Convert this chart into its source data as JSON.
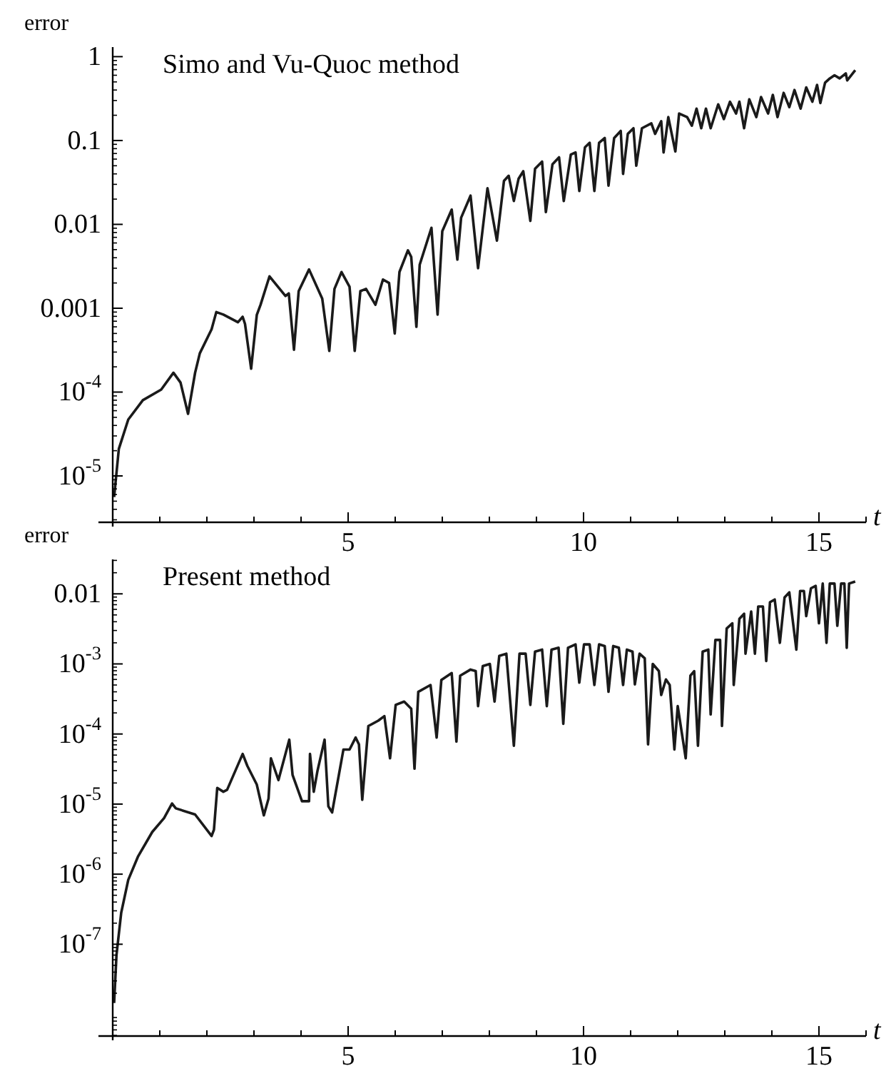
{
  "chart_data": [
    {
      "type": "line",
      "title": "Simo and Vu-Quoc method",
      "xlabel": "t",
      "ylabel": "error",
      "log": "y",
      "xlim": [
        0,
        16
      ],
      "ylim": [
        2.8e-06,
        1.3
      ],
      "xticks": [
        {
          "value": 0,
          "label": null
        },
        {
          "value": 1,
          "label": null
        },
        {
          "value": 2,
          "label": null
        },
        {
          "value": 3,
          "label": null
        },
        {
          "value": 4,
          "label": null
        },
        5,
        {
          "value": 6,
          "label": null
        },
        {
          "value": 7,
          "label": null
        },
        {
          "value": 8,
          "label": null
        },
        {
          "value": 9,
          "label": null
        },
        10,
        {
          "value": 11,
          "label": null
        },
        {
          "value": 12,
          "label": null
        },
        {
          "value": 13,
          "label": null
        },
        {
          "value": 14,
          "label": null
        },
        15,
        {
          "value": 16,
          "label": null
        }
      ],
      "yticks": [
        {
          "value": 1e-05,
          "label": "10$^{-5}$"
        },
        {
          "value": 0.0001,
          "label": "10$^{-4}$"
        },
        0.001,
        0.01,
        0.1,
        1
      ],
      "series": [
        {
          "color": "#1a1a1a",
          "x": [
            0.03,
            0.13,
            0.33,
            0.64,
            1.03,
            1.29,
            1.44,
            1.6,
            1.75,
            1.85,
            2.1,
            2.2,
            2.35,
            2.66,
            2.76,
            2.81,
            2.94,
            3.06,
            3.14,
            3.33,
            3.67,
            3.74,
            3.85,
            3.95,
            4.17,
            4.45,
            4.6,
            4.71,
            4.86,
            5.03,
            5.14,
            5.26,
            5.38,
            5.58,
            5.74,
            5.87,
            5.99,
            6.09,
            6.27,
            6.34,
            6.45,
            6.52,
            6.77,
            6.9,
            7.0,
            7.2,
            7.32,
            7.4,
            7.6,
            7.76,
            7.96,
            8.16,
            8.31,
            8.41,
            8.52,
            8.62,
            8.72,
            8.87,
            8.97,
            9.12,
            9.2,
            9.34,
            9.48,
            9.58,
            9.73,
            9.83,
            9.91,
            10.03,
            10.13,
            10.23,
            10.33,
            10.45,
            10.53,
            10.65,
            10.79,
            10.84,
            10.94,
            11.06,
            11.12,
            11.24,
            11.44,
            11.52,
            11.65,
            11.7,
            11.8,
            11.95,
            12.03,
            12.2,
            12.3,
            12.4,
            12.5,
            12.6,
            12.7,
            12.86,
            12.98,
            13.11,
            13.24,
            13.31,
            13.41,
            13.52,
            13.67,
            13.77,
            13.92,
            14.02,
            14.12,
            14.25,
            14.37,
            14.48,
            14.61,
            14.73,
            14.86,
            14.96,
            15.03,
            15.13,
            15.23,
            15.33,
            15.44,
            15.57,
            15.6,
            15.77
          ],
          "values": [
            5.6e-06,
            2.1e-05,
            4.7e-05,
            8e-05,
            0.000107,
            0.00017,
            0.00013,
            5.5e-05,
            0.00017,
            0.00029,
            0.00056,
            0.0009,
            0.00084,
            0.00068,
            0.00079,
            0.00065,
            0.00019,
            0.00083,
            0.0011,
            0.0024,
            0.0014,
            0.0015,
            0.00032,
            0.0016,
            0.0029,
            0.0013,
            0.00031,
            0.0017,
            0.0027,
            0.0018,
            0.00031,
            0.0016,
            0.0017,
            0.0011,
            0.0022,
            0.002,
            0.0005,
            0.0027,
            0.0049,
            0.0041,
            0.0006,
            0.0033,
            0.0091,
            0.00084,
            0.0083,
            0.015,
            0.0038,
            0.012,
            0.022,
            0.003,
            0.027,
            0.0064,
            0.033,
            0.038,
            0.019,
            0.035,
            0.043,
            0.011,
            0.046,
            0.056,
            0.014,
            0.052,
            0.063,
            0.019,
            0.068,
            0.072,
            0.025,
            0.083,
            0.094,
            0.025,
            0.094,
            0.107,
            0.029,
            0.107,
            0.13,
            0.04,
            0.12,
            0.14,
            0.05,
            0.14,
            0.16,
            0.12,
            0.17,
            0.072,
            0.19,
            0.074,
            0.21,
            0.19,
            0.15,
            0.24,
            0.14,
            0.24,
            0.14,
            0.27,
            0.18,
            0.29,
            0.21,
            0.29,
            0.14,
            0.31,
            0.19,
            0.33,
            0.21,
            0.35,
            0.19,
            0.37,
            0.25,
            0.4,
            0.24,
            0.43,
            0.29,
            0.46,
            0.28,
            0.49,
            0.55,
            0.6,
            0.55,
            0.63,
            0.52,
            0.69
          ]
        }
      ]
    },
    {
      "type": "line",
      "title": "Present method",
      "xlabel": "t",
      "ylabel": "error",
      "log": "y",
      "xlim": [
        0,
        16
      ],
      "ylim": [
        4.9e-09,
        0.031
      ],
      "xticks": [
        {
          "value": 0,
          "label": null
        },
        {
          "value": 1,
          "label": null
        },
        {
          "value": 2,
          "label": null
        },
        {
          "value": 3,
          "label": null
        },
        {
          "value": 4,
          "label": null
        },
        5,
        {
          "value": 6,
          "label": null
        },
        {
          "value": 7,
          "label": null
        },
        {
          "value": 8,
          "label": null
        },
        {
          "value": 9,
          "label": null
        },
        10,
        {
          "value": 11,
          "label": null
        },
        {
          "value": 12,
          "label": null
        },
        {
          "value": 13,
          "label": null
        },
        {
          "value": 14,
          "label": null
        },
        15,
        {
          "value": 16,
          "label": null
        }
      ],
      "yticks": [
        {
          "value": 1e-07,
          "label": "10$^{-7}$"
        },
        {
          "value": 1e-06,
          "label": "10$^{-6}$"
        },
        {
          "value": 1e-05,
          "label": "10$^{-5}$"
        },
        {
          "value": 0.0001,
          "label": "10$^{-4}$"
        },
        {
          "value": 0.001,
          "label": "10$^{-3}$"
        },
        0.01
      ],
      "series": [
        {
          "color": "#1a1a1a",
          "x": [
            0.03,
            0.08,
            0.18,
            0.33,
            0.54,
            0.84,
            1.09,
            1.26,
            1.34,
            1.75,
            2.1,
            2.15,
            2.22,
            2.35,
            2.43,
            2.76,
            2.86,
            3.06,
            3.21,
            3.31,
            3.36,
            3.52,
            3.75,
            3.82,
            4.02,
            4.17,
            4.19,
            4.27,
            4.35,
            4.5,
            4.58,
            4.66,
            4.9,
            5.03,
            5.16,
            5.23,
            5.3,
            5.43,
            5.64,
            5.77,
            5.89,
            6.01,
            6.19,
            6.34,
            6.41,
            6.49,
            6.75,
            6.88,
            6.98,
            7.2,
            7.3,
            7.38,
            7.6,
            7.71,
            7.76,
            7.86,
            8.01,
            8.11,
            8.21,
            8.36,
            8.52,
            8.64,
            8.77,
            8.87,
            8.97,
            9.12,
            9.22,
            9.32,
            9.47,
            9.57,
            9.67,
            9.83,
            9.91,
            10.01,
            10.13,
            10.23,
            10.33,
            10.45,
            10.53,
            10.63,
            10.75,
            10.84,
            10.92,
            11.04,
            11.09,
            11.19,
            11.3,
            11.37,
            11.47,
            11.6,
            11.65,
            11.75,
            11.83,
            11.93,
            12.0,
            12.17,
            12.27,
            12.35,
            12.43,
            12.53,
            12.65,
            12.7,
            12.8,
            12.9,
            12.94,
            13.04,
            13.16,
            13.19,
            13.31,
            13.41,
            13.44,
            13.56,
            13.64,
            13.71,
            13.81,
            13.88,
            13.96,
            14.06,
            14.17,
            14.27,
            14.37,
            14.52,
            14.6,
            14.68,
            14.73,
            14.83,
            14.93,
            15.0,
            15.08,
            15.16,
            15.23,
            15.33,
            15.39,
            15.47,
            15.54,
            15.59,
            15.64,
            15.77
          ],
          "values": [
            1.45e-08,
            7e-08,
            2.8e-07,
            8.3e-07,
            1.8e-06,
            4e-06,
            6.3e-06,
            1.02e-05,
            8.7e-06,
            7.1e-06,
            3.5e-06,
            4.3e-06,
            1.7e-05,
            1.5e-05,
            1.6e-05,
            5.2e-05,
            3.5e-05,
            1.9e-05,
            6.9e-06,
            1.2e-05,
            4.5e-05,
            2.2e-05,
            8.3e-05,
            2.6e-05,
            1.1e-05,
            1.1e-05,
            5.2e-05,
            1.5e-05,
            3e-05,
            8.3e-05,
            9.3e-06,
            7.6e-06,
            6e-05,
            6e-05,
            8.9e-05,
            7.1e-05,
            1.15e-05,
            0.00013,
            0.000155,
            0.00018,
            4.5e-05,
            0.00026,
            0.00029,
            0.00023,
            3.2e-05,
            0.0004,
            0.0005,
            8.9e-05,
            0.00059,
            0.00074,
            7.8e-05,
            0.00068,
            0.00083,
            0.00079,
            0.00025,
            0.00093,
            0.001,
            0.00029,
            0.0013,
            0.0014,
            6.8e-05,
            0.0014,
            0.0014,
            0.00026,
            0.0015,
            0.0016,
            0.00025,
            0.0016,
            0.0017,
            0.00014,
            0.0017,
            0.0019,
            0.00054,
            0.0019,
            0.0019,
            0.0005,
            0.0019,
            0.0018,
            0.0004,
            0.0018,
            0.0017,
            0.0005,
            0.0016,
            0.0015,
            0.00051,
            0.0014,
            0.0012,
            7.1e-05,
            0.001,
            0.00079,
            0.00036,
            0.0006,
            0.0005,
            6e-05,
            0.00025,
            4.5e-05,
            0.00068,
            0.00079,
            6.8e-05,
            0.0015,
            0.0016,
            0.00019,
            0.0022,
            0.0022,
            0.00013,
            0.0032,
            0.0038,
            0.0005,
            0.0044,
            0.0052,
            0.0014,
            0.0056,
            0.0014,
            0.0066,
            0.0066,
            0.0011,
            0.0076,
            0.0083,
            0.002,
            0.0089,
            0.0105,
            0.0016,
            0.011,
            0.011,
            0.0048,
            0.012,
            0.013,
            0.0038,
            0.014,
            0.002,
            0.014,
            0.014,
            0.0035,
            0.014,
            0.014,
            0.0017,
            0.014,
            0.015
          ]
        }
      ]
    }
  ]
}
